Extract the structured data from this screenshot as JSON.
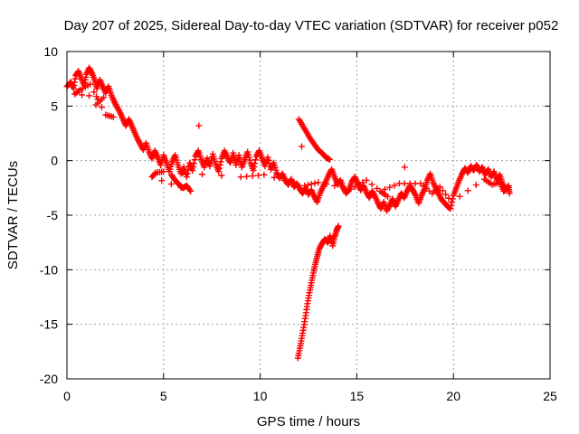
{
  "chart_data": {
    "type": "scatter",
    "title": "Day 207 of 2025, Sidereal Day-to-day VTEC variation (SDTVAR) for receiver p052",
    "xlabel": "GPS time / hours",
    "ylabel": "SDTVAR / TECUs",
    "xlim": [
      0,
      25
    ],
    "ylim": [
      -20,
      10
    ],
    "xticks": [
      0,
      5,
      10,
      15,
      20,
      25
    ],
    "yticks": [
      -20,
      -15,
      -10,
      -5,
      0,
      5,
      10
    ],
    "grid": true,
    "marker": "+",
    "color": "#ff0000",
    "series": [
      {
        "name": "main trace",
        "points": [
          [
            0.0,
            6.8
          ],
          [
            0.2,
            7.2
          ],
          [
            0.35,
            6.6
          ],
          [
            0.45,
            7.8
          ],
          [
            0.6,
            8.2
          ],
          [
            0.75,
            7.5
          ],
          [
            0.9,
            6.9
          ],
          [
            1.0,
            7.9
          ],
          [
            1.15,
            8.5
          ],
          [
            1.3,
            8.0
          ],
          [
            1.45,
            7.3
          ],
          [
            1.55,
            6.6
          ],
          [
            1.7,
            7.4
          ],
          [
            1.85,
            6.8
          ],
          [
            2.0,
            6.2
          ],
          [
            2.15,
            6.8
          ],
          [
            2.3,
            6.0
          ],
          [
            2.45,
            5.4
          ],
          [
            2.6,
            4.9
          ],
          [
            2.75,
            4.4
          ],
          [
            2.9,
            3.8
          ],
          [
            3.05,
            3.2
          ],
          [
            3.2,
            3.8
          ],
          [
            3.35,
            3.2
          ],
          [
            3.5,
            2.6
          ],
          [
            3.65,
            2.0
          ],
          [
            3.8,
            1.5
          ],
          [
            3.95,
            1.0
          ],
          [
            4.1,
            1.6
          ],
          [
            4.25,
            0.8
          ],
          [
            4.4,
            0.2
          ],
          [
            4.55,
            0.9
          ],
          [
            4.7,
            0.3
          ],
          [
            4.85,
            -0.4
          ],
          [
            5.0,
            0.5
          ],
          [
            5.15,
            -0.2
          ],
          [
            5.3,
            -1.0
          ],
          [
            5.45,
            -0.1
          ],
          [
            5.6,
            0.5
          ],
          [
            5.75,
            -0.4
          ],
          [
            5.9,
            -1.2
          ],
          [
            6.05,
            -0.6
          ],
          [
            6.2,
            -1.5
          ],
          [
            6.35,
            -0.2
          ],
          [
            6.5,
            -0.9
          ],
          [
            6.65,
            0.4
          ],
          [
            6.8,
            0.9
          ],
          [
            6.95,
            0.1
          ],
          [
            7.1,
            -0.6
          ],
          [
            7.25,
            0.2
          ],
          [
            7.4,
            -0.5
          ],
          [
            7.55,
            0.6
          ],
          [
            7.7,
            -0.3
          ],
          [
            7.85,
            -1.0
          ],
          [
            8.0,
            0.2
          ],
          [
            8.15,
            0.9
          ],
          [
            8.3,
            0.3
          ],
          [
            8.45,
            -0.2
          ],
          [
            8.6,
            0.7
          ],
          [
            8.75,
            -0.4
          ],
          [
            8.9,
            0.5
          ],
          [
            9.05,
            -0.6
          ],
          [
            9.2,
            0.1
          ],
          [
            9.35,
            0.8
          ],
          [
            9.5,
            -0.2
          ],
          [
            9.65,
            -0.9
          ],
          [
            9.8,
            0.4
          ],
          [
            9.95,
            0.9
          ],
          [
            10.1,
            0.2
          ],
          [
            10.25,
            -0.5
          ],
          [
            10.4,
            0.3
          ],
          [
            10.55,
            -0.8
          ],
          [
            10.7,
            -0.2
          ],
          [
            10.85,
            -1.1
          ],
          [
            11.0,
            -1.6
          ],
          [
            11.15,
            -1.2
          ],
          [
            11.3,
            -1.8
          ],
          [
            11.45,
            -2.2
          ],
          [
            11.6,
            -1.7
          ],
          [
            11.75,
            -2.4
          ],
          [
            11.9,
            -2.1
          ],
          [
            12.05,
            -2.6
          ],
          [
            12.2,
            -3.0
          ],
          [
            12.35,
            -2.5
          ],
          [
            12.5,
            -3.1
          ],
          [
            12.65,
            -2.7
          ],
          [
            12.8,
            -3.3
          ],
          [
            12.95,
            -3.8
          ],
          [
            13.1,
            -3.0
          ],
          [
            13.25,
            -2.4
          ],
          [
            13.4,
            -1.9
          ],
          [
            13.55,
            -1.3
          ],
          [
            13.7,
            -0.8
          ],
          [
            13.85,
            -1.5
          ],
          [
            14.0,
            -2.2
          ],
          [
            14.15,
            -1.8
          ],
          [
            14.3,
            -2.5
          ],
          [
            14.45,
            -3.0
          ],
          [
            14.6,
            -2.6
          ],
          [
            14.75,
            -1.9
          ],
          [
            14.9,
            -1.5
          ],
          [
            15.05,
            -2.1
          ],
          [
            15.2,
            -2.7
          ],
          [
            15.35,
            -2.3
          ],
          [
            15.5,
            -2.9
          ],
          [
            15.65,
            -3.4
          ],
          [
            15.8,
            -2.8
          ],
          [
            15.95,
            -3.3
          ],
          [
            16.1,
            -3.9
          ],
          [
            16.25,
            -4.4
          ],
          [
            16.4,
            -3.8
          ],
          [
            16.55,
            -4.6
          ],
          [
            16.7,
            -4.1
          ],
          [
            16.85,
            -3.5
          ],
          [
            17.0,
            -4.2
          ],
          [
            17.15,
            -3.6
          ],
          [
            17.3,
            -3.0
          ],
          [
            17.45,
            -3.4
          ],
          [
            17.6,
            -2.8
          ],
          [
            17.75,
            -2.3
          ],
          [
            17.9,
            -2.7
          ],
          [
            18.05,
            -3.2
          ],
          [
            18.2,
            -3.9
          ],
          [
            18.35,
            -3.2
          ],
          [
            18.5,
            -2.6
          ],
          [
            18.65,
            -1.8
          ],
          [
            18.8,
            -1.2
          ],
          [
            18.95,
            -2.0
          ],
          [
            19.1,
            -2.6
          ],
          [
            19.25,
            -3.1
          ],
          [
            19.4,
            -3.6
          ],
          [
            19.55,
            -3.9
          ],
          [
            19.7,
            -4.2
          ],
          [
            19.85,
            -4.4
          ],
          [
            20.0,
            -3.2
          ],
          [
            20.15,
            -2.5
          ],
          [
            20.3,
            -1.8
          ],
          [
            20.45,
            -1.2
          ],
          [
            20.6,
            -0.7
          ],
          [
            20.75,
            -1.1
          ],
          [
            20.9,
            -0.5
          ],
          [
            21.05,
            -0.9
          ],
          [
            21.2,
            -0.4
          ],
          [
            21.35,
            -1.0
          ],
          [
            21.5,
            -0.6
          ],
          [
            21.65,
            -1.3
          ],
          [
            21.8,
            -0.8
          ],
          [
            21.95,
            -1.5
          ],
          [
            22.1,
            -1.0
          ],
          [
            22.25,
            -1.8
          ],
          [
            22.4,
            -1.3
          ],
          [
            22.55,
            -2.1
          ],
          [
            22.7,
            -2.7
          ],
          [
            22.85,
            -2.3
          ],
          [
            22.9,
            -3.0
          ]
        ]
      },
      {
        "name": "lower cluster",
        "points": [
          [
            5.4,
            -1.3
          ],
          [
            5.6,
            -1.8
          ],
          [
            5.8,
            -2.2
          ],
          [
            6.0,
            -2.5
          ],
          [
            6.2,
            -2.3
          ],
          [
            6.4,
            -2.8
          ],
          [
            4.4,
            -1.5
          ],
          [
            4.6,
            -1.1
          ],
          [
            5.0,
            -1.0
          ],
          [
            9.0,
            -1.5
          ],
          [
            10.2,
            -1.3
          ],
          [
            12.3,
            -2.3
          ],
          [
            13.0,
            -2.0
          ],
          [
            14.7,
            -2.6
          ],
          [
            15.5,
            -1.8
          ],
          [
            16.6,
            -3.3
          ],
          [
            16.2,
            -2.8
          ],
          [
            17.2,
            -2.1
          ],
          [
            18.3,
            -2.1
          ],
          [
            18.9,
            -3.0
          ],
          [
            19.3,
            -2.4
          ],
          [
            19.9,
            -3.8
          ],
          [
            21.6,
            -1.7
          ],
          [
            22.0,
            -2.2
          ],
          [
            22.4,
            -2.0
          ],
          [
            22.6,
            -2.8
          ],
          [
            22.8,
            -2.5
          ],
          [
            1.5,
            5.1
          ],
          [
            1.9,
            5.8
          ],
          [
            0.4,
            6.1
          ],
          [
            0.7,
            6.5
          ],
          [
            1.2,
            7.0
          ],
          [
            2.0,
            4.2
          ],
          [
            2.4,
            4.0
          ]
        ]
      },
      {
        "name": "descending segment",
        "points": [
          [
            12.0,
            3.8
          ],
          [
            12.2,
            3.2
          ],
          [
            12.4,
            2.6
          ],
          [
            12.6,
            2.0
          ],
          [
            12.8,
            1.5
          ],
          [
            13.0,
            1.0
          ],
          [
            13.2,
            0.7
          ],
          [
            13.4,
            0.3
          ],
          [
            13.6,
            0.1
          ]
        ]
      },
      {
        "name": "rising segment",
        "points": [
          [
            11.95,
            -18.1
          ],
          [
            12.05,
            -17.2
          ],
          [
            12.15,
            -16.3
          ],
          [
            12.25,
            -15.3
          ],
          [
            12.35,
            -14.2
          ],
          [
            12.45,
            -13.1
          ],
          [
            12.55,
            -12.1
          ],
          [
            12.65,
            -11.2
          ],
          [
            12.75,
            -10.3
          ],
          [
            12.85,
            -9.5
          ],
          [
            12.95,
            -8.8
          ],
          [
            13.05,
            -8.1
          ],
          [
            13.2,
            -7.6
          ],
          [
            13.35,
            -7.2
          ],
          [
            13.5,
            -7.5
          ],
          [
            13.62,
            -6.9
          ],
          [
            13.75,
            -7.8
          ],
          [
            13.85,
            -7.0
          ],
          [
            13.95,
            -6.4
          ],
          [
            14.05,
            -6.0
          ]
        ]
      }
    ]
  }
}
